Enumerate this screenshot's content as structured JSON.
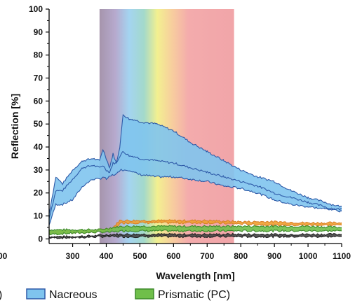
{
  "chart_data": {
    "type": "area",
    "xlabel": "Wavelength [nm]",
    "ylabel": "Reflection [%]",
    "xlim": [
      230,
      1100
    ],
    "ylim": [
      -2,
      100
    ],
    "x_ticks": [
      300,
      400,
      500,
      600,
      700,
      800,
      900,
      1000,
      1100
    ],
    "y_ticks": [
      0,
      10,
      20,
      30,
      40,
      50,
      60,
      70,
      80,
      90,
      100
    ],
    "x_tick_labels": [
      "300",
      "400",
      "500",
      "600",
      "700",
      "800",
      "900",
      "1000",
      "1100"
    ],
    "y_tick_labels": [
      "0",
      "10",
      "20",
      "30",
      "40",
      "50",
      "60",
      "70",
      "80",
      "90",
      "100"
    ],
    "grid": false,
    "visible_spectrum": {
      "start": 380,
      "end": 780
    },
    "cut_off_labels": {
      "left_edge_tick": "00",
      "legend_fragment": ")"
    },
    "series": [
      {
        "name": "Nacreous",
        "color": "#7fc4ee",
        "edge_color": "#2e5aa8",
        "x": [
          230,
          250,
          270,
          300,
          330,
          360,
          380,
          390,
          400,
          410,
          420,
          430,
          440,
          450,
          460,
          470,
          480,
          500,
          550,
          600,
          650,
          700,
          750,
          800,
          850,
          900,
          950,
          1000,
          1050,
          1070,
          1100
        ],
        "upper": [
          11,
          27,
          24,
          30,
          34,
          35,
          34,
          39,
          35,
          31,
          37,
          33,
          40,
          54,
          53,
          52,
          52,
          51,
          50,
          47,
          42,
          38,
          34,
          30,
          27,
          25,
          21,
          18,
          16,
          15,
          14
        ],
        "mean": [
          9,
          21,
          21,
          26,
          31,
          32,
          31,
          32,
          30,
          29,
          33,
          33,
          36,
          38,
          37,
          36,
          36,
          35,
          34,
          33,
          31,
          29,
          27,
          25,
          23,
          20,
          18,
          16,
          14,
          13,
          13
        ],
        "lower": [
          6,
          15,
          15,
          17,
          23,
          26,
          26,
          27,
          26,
          27,
          28,
          28,
          30,
          30,
          30,
          30,
          29,
          28,
          27,
          27,
          26,
          25,
          23,
          22,
          20,
          17,
          15,
          14,
          13,
          13,
          12
        ]
      },
      {
        "name": "Prismatic (PC)",
        "color": "#6fbf4a",
        "edge_color": "#3d8a2a",
        "x": [
          230,
          300,
          380,
          420,
          450,
          500,
          600,
          700,
          800,
          900,
          1000,
          1100
        ],
        "upper": [
          4,
          4,
          4,
          5,
          5.5,
          5.5,
          5.5,
          5.5,
          5.5,
          5.5,
          5.5,
          5
        ],
        "lower": [
          2,
          2.5,
          3,
          3,
          3.5,
          3.5,
          3.5,
          3.5,
          3.5,
          3.5,
          3.5,
          3.5
        ]
      }
    ],
    "additional_unlabeled_curves": [
      {
        "color": "#f0a030",
        "edge_color": "#d9822b",
        "x": [
          230,
          300,
          380,
          420,
          440,
          450,
          500,
          600,
          700,
          800,
          900,
          1000,
          1100
        ],
        "upper": [
          3.5,
          3.5,
          4,
          5,
          8,
          8,
          8,
          8,
          8,
          7.5,
          7.5,
          7,
          7
        ],
        "lower": [
          2.5,
          2.5,
          3,
          4,
          6.5,
          7,
          7,
          7,
          7,
          6.5,
          6,
          6,
          6
        ]
      },
      {
        "color": "#444444",
        "edge_color": "#222222",
        "x": [
          230,
          300,
          380,
          420,
          450,
          500,
          600,
          700,
          800,
          900,
          1000,
          1100
        ],
        "upper": [
          1,
          1,
          1.5,
          2,
          2,
          2,
          2,
          2,
          2,
          2,
          2,
          2
        ],
        "lower": [
          0.5,
          0.5,
          1,
          1,
          1,
          1,
          1,
          1,
          1,
          1,
          1,
          1
        ]
      }
    ],
    "legend": {
      "placement": "bottom",
      "entries": [
        {
          "label": "Nacreous",
          "color": "#7fc4ee",
          "edge_color": "#2e5aa8"
        },
        {
          "label": "Prismatic (PC)",
          "color": "#6fbf4a",
          "edge_color": "#3d8a2a"
        }
      ]
    }
  }
}
